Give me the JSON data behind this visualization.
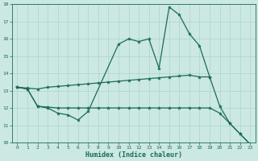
{
  "xlabel": "Humidex (Indice chaleur)",
  "background_color": "#cce8e2",
  "line_color": "#1a6b5a",
  "grid_color": "#aad4cc",
  "xlim_min": -0.5,
  "xlim_max": 23.5,
  "ylim_min": 10,
  "ylim_max": 18,
  "xticks": [
    0,
    1,
    2,
    3,
    4,
    5,
    6,
    7,
    8,
    9,
    10,
    11,
    12,
    13,
    14,
    15,
    16,
    17,
    18,
    19,
    20,
    21,
    22,
    23
  ],
  "yticks": [
    10,
    11,
    12,
    13,
    14,
    15,
    16,
    17,
    18
  ],
  "line1_x": [
    0,
    1,
    2,
    3,
    4,
    5,
    6,
    7,
    10,
    11,
    12,
    13,
    14,
    15,
    16,
    17,
    18,
    19,
    20,
    21,
    22,
    23
  ],
  "line1_y": [
    13.2,
    13.1,
    12.1,
    12.0,
    11.7,
    11.6,
    11.3,
    11.8,
    15.7,
    16.0,
    15.85,
    16.0,
    14.3,
    17.85,
    17.4,
    16.3,
    15.6,
    13.8,
    12.1,
    11.1,
    10.5,
    9.9
  ],
  "line2_x": [
    0,
    1,
    2,
    3,
    4,
    5,
    6,
    7,
    8,
    9,
    10,
    11,
    12,
    13,
    14,
    15,
    16,
    17,
    18,
    19
  ],
  "line2_y": [
    13.2,
    13.15,
    13.1,
    13.2,
    13.25,
    13.3,
    13.35,
    13.4,
    13.45,
    13.5,
    13.55,
    13.6,
    13.65,
    13.7,
    13.75,
    13.8,
    13.85,
    13.9,
    13.8,
    13.8
  ],
  "line3_x": [
    0,
    1,
    2,
    3,
    4,
    5,
    6,
    7,
    8,
    9,
    10,
    11,
    12,
    13,
    14,
    15,
    16,
    17,
    18,
    19,
    20,
    21,
    22,
    23
  ],
  "line3_y": [
    13.2,
    13.1,
    12.1,
    12.05,
    12.0,
    12.0,
    12.0,
    12.0,
    12.0,
    12.0,
    12.0,
    12.0,
    12.0,
    12.0,
    12.0,
    12.0,
    12.0,
    12.0,
    12.0,
    12.0,
    11.7,
    11.1,
    10.5,
    9.9
  ]
}
